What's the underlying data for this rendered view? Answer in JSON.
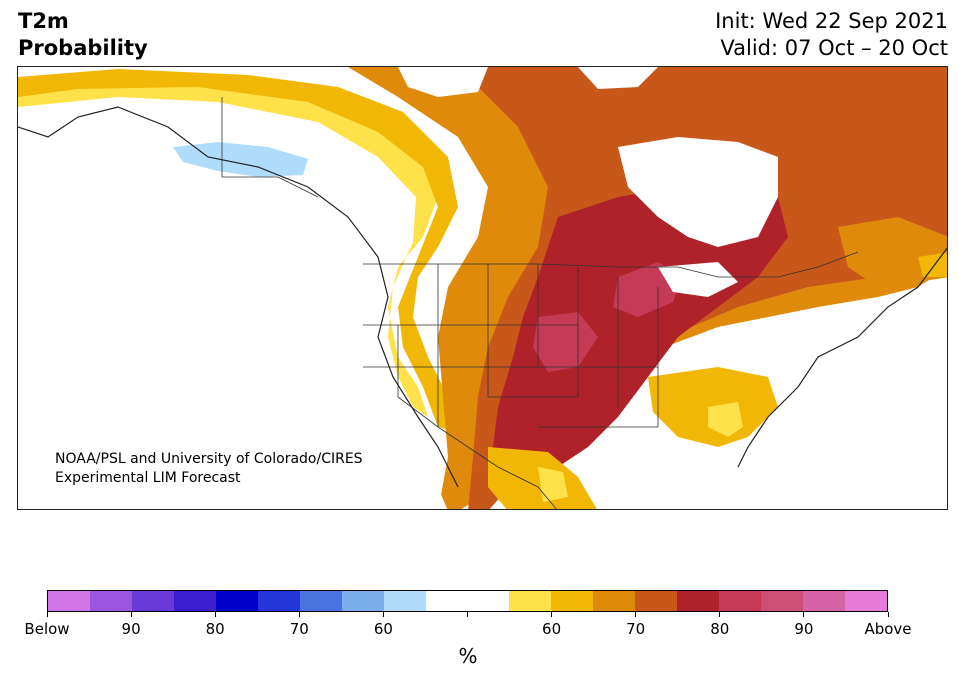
{
  "title": {
    "line1": "T2m",
    "line2": "Probability"
  },
  "info": {
    "init": "Init: Wed 22 Sep 2021",
    "valid": "Valid: 07 Oct – 20 Oct"
  },
  "credit": {
    "line1": "NOAA/PSL and University of Colorado/CIRES",
    "line2": "Experimental LIM Forecast"
  },
  "colorbar": {
    "colors": [
      "#d175e8",
      "#9b55e0",
      "#6838d8",
      "#3a1ed0",
      "#0000cc",
      "#2536d8",
      "#4a72e0",
      "#7aaeee",
      "#aedcfa",
      "#ffffff",
      "#ffffff",
      "#ffe14a",
      "#f2b705",
      "#e08a0c",
      "#c8581a",
      "#b0222a",
      "#c53a55",
      "#cc4f78",
      "#d663a6",
      "#e67bd8"
    ],
    "tick_labels": [
      "Below",
      "90",
      "80",
      "70",
      "60",
      "",
      "60",
      "70",
      "80",
      "90",
      "Above"
    ],
    "unit": "%"
  }
}
